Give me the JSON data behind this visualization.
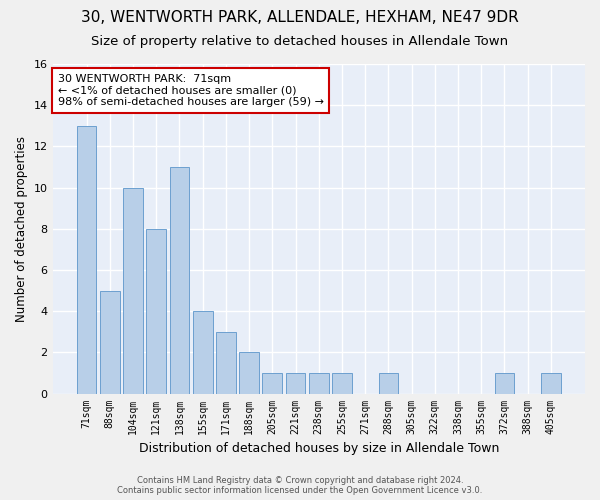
{
  "title1": "30, WENTWORTH PARK, ALLENDALE, HEXHAM, NE47 9DR",
  "title2": "Size of property relative to detached houses in Allendale Town",
  "xlabel": "Distribution of detached houses by size in Allendale Town",
  "ylabel": "Number of detached properties",
  "categories": [
    "71sqm",
    "88sqm",
    "104sqm",
    "121sqm",
    "138sqm",
    "155sqm",
    "171sqm",
    "188sqm",
    "205sqm",
    "221sqm",
    "238sqm",
    "255sqm",
    "271sqm",
    "288sqm",
    "305sqm",
    "322sqm",
    "338sqm",
    "355sqm",
    "372sqm",
    "388sqm",
    "405sqm"
  ],
  "values": [
    13,
    5,
    10,
    8,
    11,
    4,
    3,
    2,
    1,
    1,
    1,
    1,
    0,
    1,
    0,
    0,
    0,
    0,
    1,
    0,
    1
  ],
  "bar_color": "#b8cfe8",
  "bar_edge_color": "#6ca0d0",
  "annotation_text": "30 WENTWORTH PARK:  71sqm\n← <1% of detached houses are smaller (0)\n98% of semi-detached houses are larger (59) →",
  "annotation_box_color": "#ffffff",
  "annotation_box_edge_color": "#cc0000",
  "ylim": [
    0,
    16
  ],
  "yticks": [
    0,
    2,
    4,
    6,
    8,
    10,
    12,
    14,
    16
  ],
  "footer1": "Contains HM Land Registry data © Crown copyright and database right 2024.",
  "footer2": "Contains public sector information licensed under the Open Government Licence v3.0.",
  "bg_color": "#e8eef8",
  "fig_color": "#f0f0f0",
  "grid_color": "#ffffff",
  "title1_fontsize": 11,
  "title2_fontsize": 9.5,
  "xlabel_fontsize": 9,
  "ylabel_fontsize": 8.5
}
